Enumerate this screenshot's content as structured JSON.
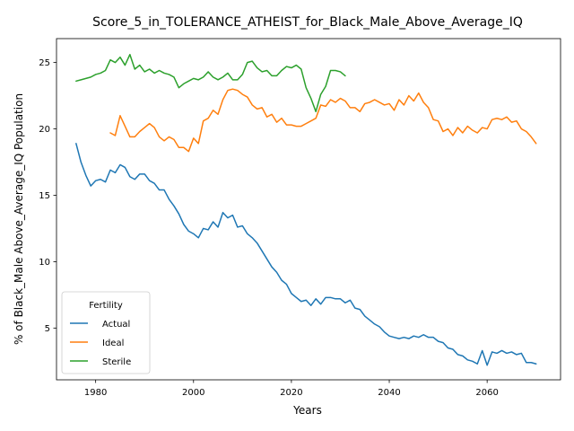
{
  "chart_data": {
    "type": "line",
    "title": "Score_5_in_TOLERANCE_ATHEIST_for_Black_Male_Above_Average_IQ",
    "xlabel": "Years",
    "ylabel": "% of Black_Male Above_Average_IQ Population",
    "xlim": [
      1972,
      2075
    ],
    "ylim": [
      1.1,
      26.8
    ],
    "xticks": [
      1980,
      2000,
      2020,
      2040,
      2060
    ],
    "yticks": [
      5,
      10,
      15,
      20,
      25
    ],
    "grid": false,
    "legend": {
      "title": "Fertility",
      "placement": "lower-left"
    },
    "series": [
      {
        "name": "Actual",
        "color": "#1f77b4",
        "x": [
          1976,
          1977,
          1978,
          1979,
          1980,
          1981,
          1982,
          1983,
          1984,
          1985,
          1986,
          1987,
          1988,
          1989,
          1990,
          1991,
          1992,
          1993,
          1994,
          1995,
          1996,
          1997,
          1998,
          1999,
          2000,
          2001,
          2002,
          2003,
          2004,
          2005,
          2006,
          2007,
          2008,
          2009,
          2010,
          2011,
          2012,
          2013,
          2014,
          2015,
          2016,
          2017,
          2018,
          2019,
          2020,
          2021,
          2022,
          2023,
          2024,
          2025,
          2026,
          2027,
          2028,
          2029,
          2030,
          2031,
          2032,
          2033,
          2034,
          2035,
          2036,
          2037,
          2038,
          2039,
          2040,
          2041,
          2042,
          2043,
          2044,
          2045,
          2046,
          2047,
          2048,
          2049,
          2050,
          2051,
          2052,
          2053,
          2054,
          2055,
          2056,
          2057,
          2058,
          2059,
          2060,
          2061,
          2062,
          2063,
          2064,
          2065,
          2066,
          2067,
          2068,
          2069,
          2070
        ],
        "values": [
          18.9,
          17.5,
          16.5,
          15.7,
          16.1,
          16.2,
          16.0,
          16.9,
          16.7,
          17.3,
          17.1,
          16.4,
          16.2,
          16.6,
          16.6,
          16.1,
          15.9,
          15.4,
          15.4,
          14.7,
          14.2,
          13.6,
          12.8,
          12.3,
          12.1,
          11.8,
          12.5,
          12.4,
          13.0,
          12.6,
          13.7,
          13.3,
          13.5,
          12.6,
          12.7,
          12.1,
          11.8,
          11.4,
          10.8,
          10.2,
          9.6,
          9.2,
          8.6,
          8.3,
          7.6,
          7.3,
          7.0,
          7.1,
          6.7,
          7.2,
          6.8,
          7.3,
          7.3,
          7.2,
          7.2,
          6.9,
          7.1,
          6.5,
          6.4,
          5.9,
          5.6,
          5.3,
          5.1,
          4.7,
          4.4,
          4.3,
          4.2,
          4.3,
          4.2,
          4.4,
          4.3,
          4.5,
          4.3,
          4.3,
          4.0,
          3.9,
          3.5,
          3.4,
          3.0,
          2.9,
          2.6,
          2.5,
          2.3,
          3.3,
          2.2,
          3.2,
          3.1,
          3.3,
          3.1,
          3.2,
          3.0,
          3.1,
          2.4,
          2.4,
          2.3
        ]
      },
      {
        "name": "Ideal",
        "color": "#ff7f0e",
        "x": [
          1983,
          1984,
          1985,
          1986,
          1987,
          1988,
          1989,
          1990,
          1991,
          1992,
          1993,
          1994,
          1995,
          1996,
          1997,
          1998,
          1999,
          2000,
          2001,
          2002,
          2003,
          2004,
          2005,
          2006,
          2007,
          2008,
          2009,
          2010,
          2011,
          2012,
          2013,
          2014,
          2015,
          2016,
          2017,
          2018,
          2019,
          2020,
          2021,
          2022,
          2023,
          2024,
          2025,
          2026,
          2027,
          2028,
          2029,
          2030,
          2031,
          2032,
          2033,
          2034,
          2035,
          2036,
          2037,
          2038,
          2039,
          2040,
          2041,
          2042,
          2043,
          2044,
          2045,
          2046,
          2047,
          2048,
          2049,
          2050,
          2051,
          2052,
          2053,
          2054,
          2055,
          2056,
          2057,
          2058,
          2059,
          2060,
          2061,
          2062,
          2063,
          2064,
          2065,
          2066,
          2067,
          2068,
          2069,
          2070
        ],
        "values": [
          19.7,
          19.5,
          21.0,
          20.2,
          19.4,
          19.4,
          19.8,
          20.1,
          20.4,
          20.1,
          19.4,
          19.1,
          19.4,
          19.2,
          18.6,
          18.6,
          18.3,
          19.3,
          18.9,
          20.6,
          20.8,
          21.4,
          21.1,
          22.2,
          22.9,
          23.0,
          22.9,
          22.6,
          22.4,
          21.8,
          21.5,
          21.6,
          20.9,
          21.1,
          20.5,
          20.8,
          20.3,
          20.3,
          20.2,
          20.2,
          20.4,
          20.6,
          20.8,
          21.8,
          21.7,
          22.2,
          22.0,
          22.3,
          22.1,
          21.6,
          21.6,
          21.3,
          21.9,
          22.0,
          22.2,
          22.0,
          21.8,
          21.9,
          21.4,
          22.2,
          21.8,
          22.5,
          22.1,
          22.7,
          22.0,
          21.6,
          20.7,
          20.6,
          19.8,
          20.0,
          19.5,
          20.1,
          19.7,
          20.2,
          19.9,
          19.7,
          20.1,
          20.0,
          20.7,
          20.8,
          20.7,
          20.9,
          20.5,
          20.6,
          20.0,
          19.8,
          19.4,
          18.9
        ]
      },
      {
        "name": "Sterile",
        "color": "#2ca02c",
        "x": [
          1976,
          1977,
          1978,
          1979,
          1980,
          1981,
          1982,
          1983,
          1984,
          1985,
          1986,
          1987,
          1988,
          1989,
          1990,
          1991,
          1992,
          1993,
          1994,
          1995,
          1996,
          1997,
          1998,
          1999,
          2000,
          2001,
          2002,
          2003,
          2004,
          2005,
          2006,
          2007,
          2008,
          2009,
          2010,
          2011,
          2012,
          2013,
          2014,
          2015,
          2016,
          2017,
          2018,
          2019,
          2020,
          2021,
          2022,
          2023,
          2024,
          2025,
          2026,
          2027,
          2028,
          2029,
          2030,
          2031
        ],
        "values": [
          23.6,
          23.7,
          23.8,
          23.9,
          24.1,
          24.2,
          24.4,
          25.2,
          25.0,
          25.4,
          24.8,
          25.6,
          24.5,
          24.8,
          24.3,
          24.5,
          24.2,
          24.4,
          24.2,
          24.1,
          23.9,
          23.1,
          23.4,
          23.6,
          23.8,
          23.7,
          23.9,
          24.3,
          23.9,
          23.7,
          23.9,
          24.2,
          23.7,
          23.7,
          24.1,
          25.0,
          25.1,
          24.6,
          24.3,
          24.4,
          24.0,
          24.0,
          24.4,
          24.7,
          24.6,
          24.8,
          24.5,
          23.1,
          22.3,
          21.3,
          22.6,
          23.2,
          24.4,
          24.4,
          24.3,
          24.0
        ]
      }
    ]
  }
}
